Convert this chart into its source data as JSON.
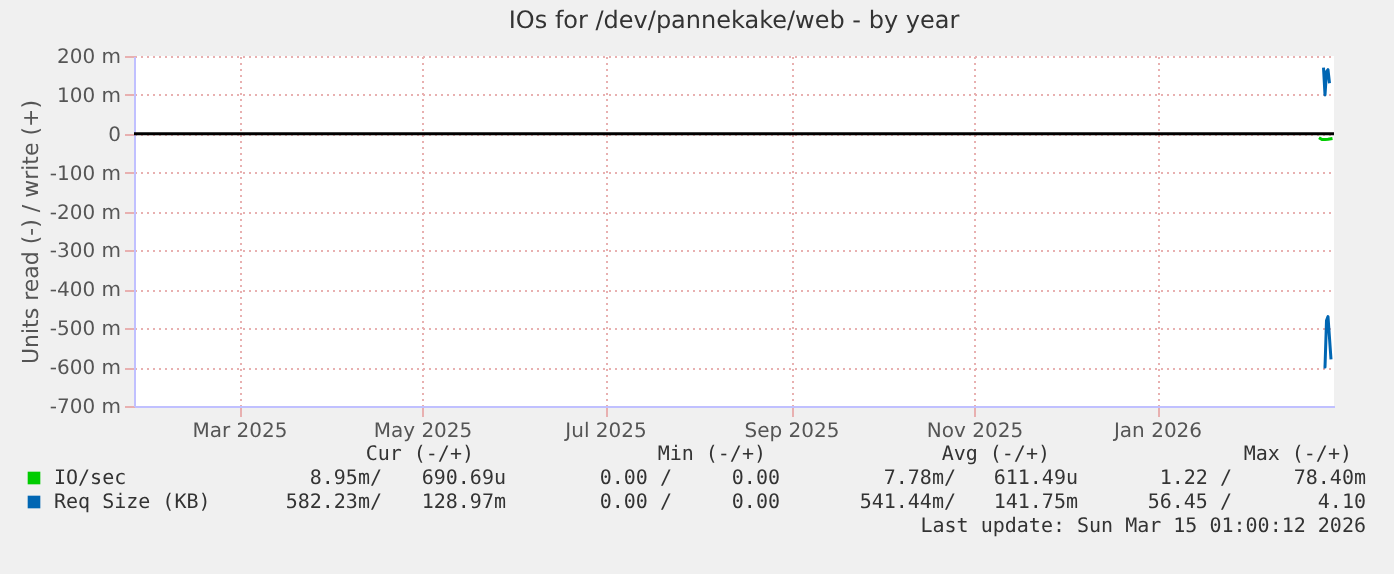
{
  "chart_data": {
    "type": "line",
    "title": "IOs for /dev/pannekake/web - by year",
    "ylabel": "Units read (-) / write (+)",
    "xlim": [
      "2025-02-08",
      "2026-03-15"
    ],
    "xticks": [
      {
        "value": "2025-03-15",
        "label": "Mar 2025"
      },
      {
        "value": "2025-05-15",
        "label": "May 2025"
      },
      {
        "value": "2025-07-15",
        "label": "Jul 2025"
      },
      {
        "value": "2025-09-15",
        "label": "Sep 2025"
      },
      {
        "value": "2025-11-15",
        "label": "Nov 2025"
      },
      {
        "value": "2026-01-15",
        "label": "Jan 2026"
      }
    ],
    "ylim": [
      -700,
      200
    ],
    "yticks": [
      {
        "value": -700,
        "label": "-700 m"
      },
      {
        "value": -600,
        "label": "-600 m"
      },
      {
        "value": -500,
        "label": "-500 m"
      },
      {
        "value": -400,
        "label": "-400 m"
      },
      {
        "value": -300,
        "label": "-300 m"
      },
      {
        "value": -200,
        "label": "-200 m"
      },
      {
        "value": -100,
        "label": "-100 m"
      },
      0,
      {
        "value": 100,
        "label": "100 m"
      },
      {
        "value": 200,
        "label": "200 m"
      }
    ],
    "grid": true,
    "legend": "bottom",
    "marker": "none",
    "line_style": "solid",
    "ref_lines": [
      {
        "axis": "y",
        "value": 0,
        "color": "#000000"
      }
    ],
    "series": [
      {
        "name": "IO/sec",
        "color": "#00cc00",
        "x": [
          "2026-03-10",
          "2026-03-11",
          "2026-03-12",
          "2026-03-13",
          "2026-03-14T12:00"
        ],
        "values": [
          -10,
          -15,
          -15,
          -14,
          -12
        ]
      },
      {
        "name": "Req Size (KB)",
        "color": "#0066b3",
        "x": [
          "2026-03-11T12:00",
          "2026-03-12",
          "2026-03-12T12:00",
          "2026-03-13",
          "2026-03-13T12:00"
        ],
        "values": [
          170,
          100,
          160,
          165,
          130
        ]
      },
      {
        "color": "#0066b3",
        "x": [
          "2026-03-11T12:00",
          "2026-03-12",
          "2026-03-12T12:00",
          "2026-03-13",
          "2026-03-14"
        ],
        "values": [
          -600,
          -600,
          -480,
          -470,
          -580
        ]
      }
    ],
    "annotations": [
      "Cur (-/+)",
      "Min (-/+)",
      "Avg (-/+)",
      "Max (-/+)",
      "8.95m/",
      "690.69u",
      "0.00 /",
      "0.00",
      "7.78m/",
      "611.49u",
      "1.22 /",
      "78.40m",
      "582.23m/",
      "128.97m",
      "0.00 /",
      "0.00",
      "541.44m/",
      "141.75m",
      "56.45 /",
      "4.10",
      "Last update: Sun Mar 15 01:00:12 2026"
    ]
  }
}
